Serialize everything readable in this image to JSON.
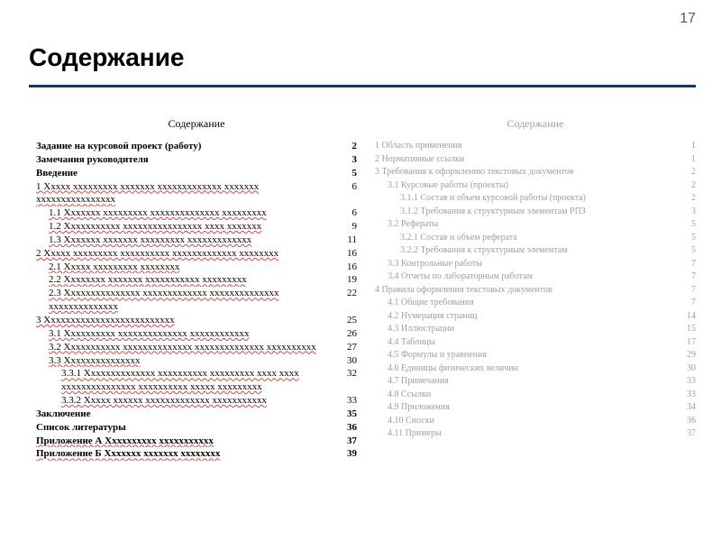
{
  "page_number": "17",
  "title": "Содержание",
  "left": {
    "heading": "Содержание",
    "rows": [
      {
        "label": "Задание на курсовой проект (работу)",
        "page": "2",
        "indent": 0,
        "bold": true
      },
      {
        "label": "Замечания руководителя",
        "page": "3",
        "indent": 0,
        "bold": true
      },
      {
        "label": "Введение",
        "page": "5",
        "indent": 0,
        "bold": true
      },
      {
        "label": "1 Ххххх ххххххххх ххххххх ххххххххххххх ххххххх хххххххххххххххх",
        "page": "6",
        "indent": 0,
        "bold": false,
        "wavy": true
      },
      {
        "label": "1.1 Ххххххх ххххххххх хххххххххххххх ххххххххх",
        "page": "6",
        "indent": 1,
        "bold": false,
        "wavy": true
      },
      {
        "label": "1.2 Ххххххххххх хххххххххххххххх хххх ххххххх",
        "page": "9",
        "indent": 1,
        "bold": false,
        "wavy": true
      },
      {
        "label": "1.3 Ххххххх ххххххх ххххххххх ххххххххххххх",
        "page": "11",
        "indent": 1,
        "bold": false,
        "wavy": true
      },
      {
        "label": "2 Ххххх ххххххххх хххххххххх ххххххххххххх хххххххх",
        "page": "16",
        "indent": 0,
        "bold": false,
        "wavy": true
      },
      {
        "label": "2.1 Ххххх ххххххххх хххххххх",
        "page": "16",
        "indent": 1,
        "bold": false,
        "wavy": true
      },
      {
        "label": "2.2 Хххххххх ххххххх ххххххххххх ххххххххх",
        "page": "19",
        "indent": 1,
        "bold": false,
        "wavy": true
      },
      {
        "label": "2.3 Ххххххххххххххх ххххххххххххх хххххххххххххх хххххххххххххх",
        "page": "22",
        "indent": 1,
        "bold": false,
        "wavy": true
      },
      {
        "label": "3 Хххххххххххххххххххххххххх",
        "page": "25",
        "indent": 0,
        "bold": false,
        "wavy": true
      },
      {
        "label": "3.1 Хххххххххх хххххххххххххх хххххххххххх",
        "page": "26",
        "indent": 1,
        "bold": false,
        "wavy": true
      },
      {
        "label": "3.2 Ххххххххххх хххххххххххххх хххххххххххххх хххххххххх",
        "page": "27",
        "indent": 1,
        "bold": false,
        "wavy": true
      },
      {
        "label": "3.3 Ххххххххххххххх",
        "page": "30",
        "indent": 1,
        "bold": false,
        "wavy": true
      },
      {
        "label": "3.3.1 Хххххххххххххх хххххххххх ххххххххх хххх хххх ххххххххххххххх хххххххххх ххххх ххххххххх",
        "page": "32",
        "indent": 2,
        "bold": false,
        "wavy": true
      },
      {
        "label": "3.3.2 Ххххх хххххх ххххххххххххх ххххххххххх",
        "page": "33",
        "indent": 2,
        "bold": false,
        "wavy": true
      },
      {
        "label": "Заключение",
        "page": "35",
        "indent": 0,
        "bold": true
      },
      {
        "label": "Список литературы",
        "page": "36",
        "indent": 0,
        "bold": true
      },
      {
        "label": "Приложение А Хххххххххх ххххххххххх",
        "page": "37",
        "indent": 0,
        "bold": true,
        "wavy": true
      },
      {
        "label": "Приложение Б Ххххххх ххххххх хххххххх",
        "page": "39",
        "indent": 0,
        "bold": true,
        "wavy": true
      }
    ]
  },
  "right": {
    "heading": "Содержание",
    "rows": [
      {
        "label": "1 Область применения",
        "page": "1",
        "indent": 0
      },
      {
        "label": "2 Нормативные ссылки",
        "page": "1",
        "indent": 0
      },
      {
        "label": "3 Требования к оформлению текстовых документов",
        "page": "2",
        "indent": 0
      },
      {
        "label": "3.1 Курсовые работы (проекты)",
        "page": "2",
        "indent": 1
      },
      {
        "label": "3.1.1 Состав и объем курсовой работы (проекта)",
        "page": "2",
        "indent": 2
      },
      {
        "label": "3.1.2 Требования к структурным элементам РПЗ",
        "page": "3",
        "indent": 2
      },
      {
        "label": "3.2 Рефераты",
        "page": "5",
        "indent": 1
      },
      {
        "label": "3.2.1 Состав и объем реферата",
        "page": "5",
        "indent": 2
      },
      {
        "label": "3.2.2 Требования к структурным элементам",
        "page": "5",
        "indent": 2
      },
      {
        "label": "3.3 Контрольные работы",
        "page": "7",
        "indent": 1
      },
      {
        "label": "3.4 Отчеты по лабораторным работам",
        "page": "7",
        "indent": 1
      },
      {
        "label": "4 Правила оформления текстовых документов",
        "page": "7",
        "indent": 0
      },
      {
        "label": "4.1 Общие требования",
        "page": "7",
        "indent": 1
      },
      {
        "label": "4.2 Нумерация страниц",
        "page": "14",
        "indent": 1
      },
      {
        "label": "4.3 Иллюстрации",
        "page": "15",
        "indent": 1
      },
      {
        "label": "4.4 Таблицы",
        "page": "17",
        "indent": 1
      },
      {
        "label": "4.5 Формулы и уравнения",
        "page": "29",
        "indent": 1
      },
      {
        "label": "4.6 Единицы физических величин",
        "page": "30",
        "indent": 1
      },
      {
        "label": "4.7 Примечания",
        "page": "33",
        "indent": 1
      },
      {
        "label": "4.8 Ссылки",
        "page": "33",
        "indent": 1
      },
      {
        "label": "4.9 Приложения",
        "page": "34",
        "indent": 1
      },
      {
        "label": "4.10 Сноски",
        "page": "36",
        "indent": 1
      },
      {
        "label": "4.11 Примеры",
        "page": "37",
        "indent": 1
      }
    ]
  },
  "colors": {
    "rule": "#17375e",
    "text": "#000000",
    "muted": "#9e9e9e",
    "pagenum": "#595959",
    "wavy": "#d14747"
  }
}
